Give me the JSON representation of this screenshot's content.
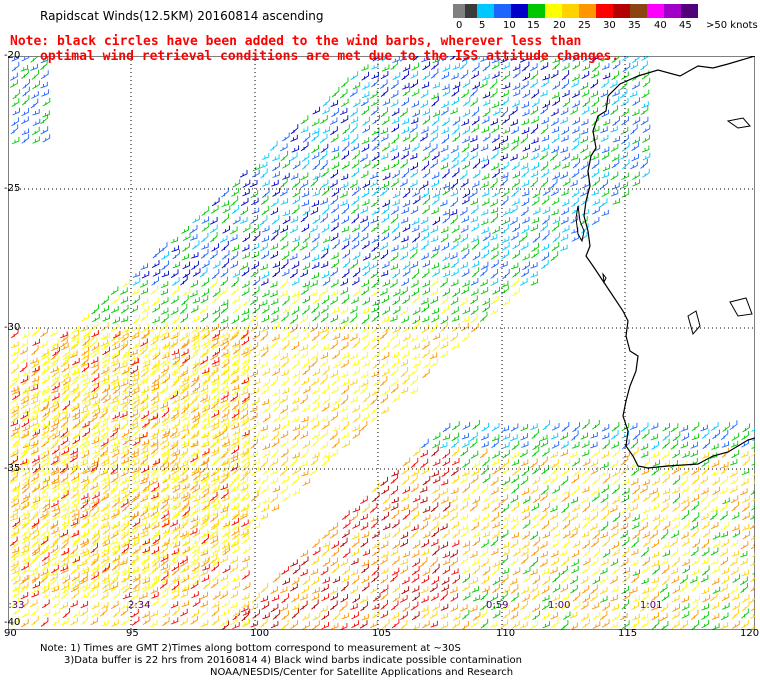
{
  "header": {
    "title": "Rapidscat Winds(12.5KM) 20160814 ascending",
    "note_line1": "Note: black circles have been added to the wind barbs, wherever less than",
    "note_line2": "optimal wind retrieval conditions are met due to the ISS attitude changes."
  },
  "legend": {
    "colors": [
      "#808080",
      "#3a3a3a",
      "#00c8ff",
      "#1e64ff",
      "#0000c8",
      "#00c800",
      "#ffff00",
      "#ffd200",
      "#ff9600",
      "#ff0000",
      "#b40000",
      "#8b4513",
      "#ff00ff",
      "#a000c8",
      "#500078"
    ],
    "labels": [
      "0",
      "5",
      "10",
      "15",
      "20",
      "25",
      "30",
      "35",
      "40",
      "45",
      ">50 knots"
    ]
  },
  "map": {
    "lat_labels": [
      "-20",
      "-25",
      "-30",
      "-35",
      "-40"
    ],
    "lon_labels": [
      "90",
      "95",
      "100",
      "105",
      "110",
      "115",
      "120"
    ],
    "time_labels": [
      "2:33",
      "2:34",
      "0:59",
      "1:00",
      "1:01"
    ],
    "coastline": "Western Australia"
  },
  "footer": {
    "line1": "Note: 1) Times are GMT 2)Times along bottom correspond to measurement at ~30S",
    "line2": "3)Data buffer is 22 hrs from 20160814 4) Black wind barbs indicate possible contamination",
    "credit": "NOAA/NESDIS/Center for Satellite Applications and Research"
  }
}
